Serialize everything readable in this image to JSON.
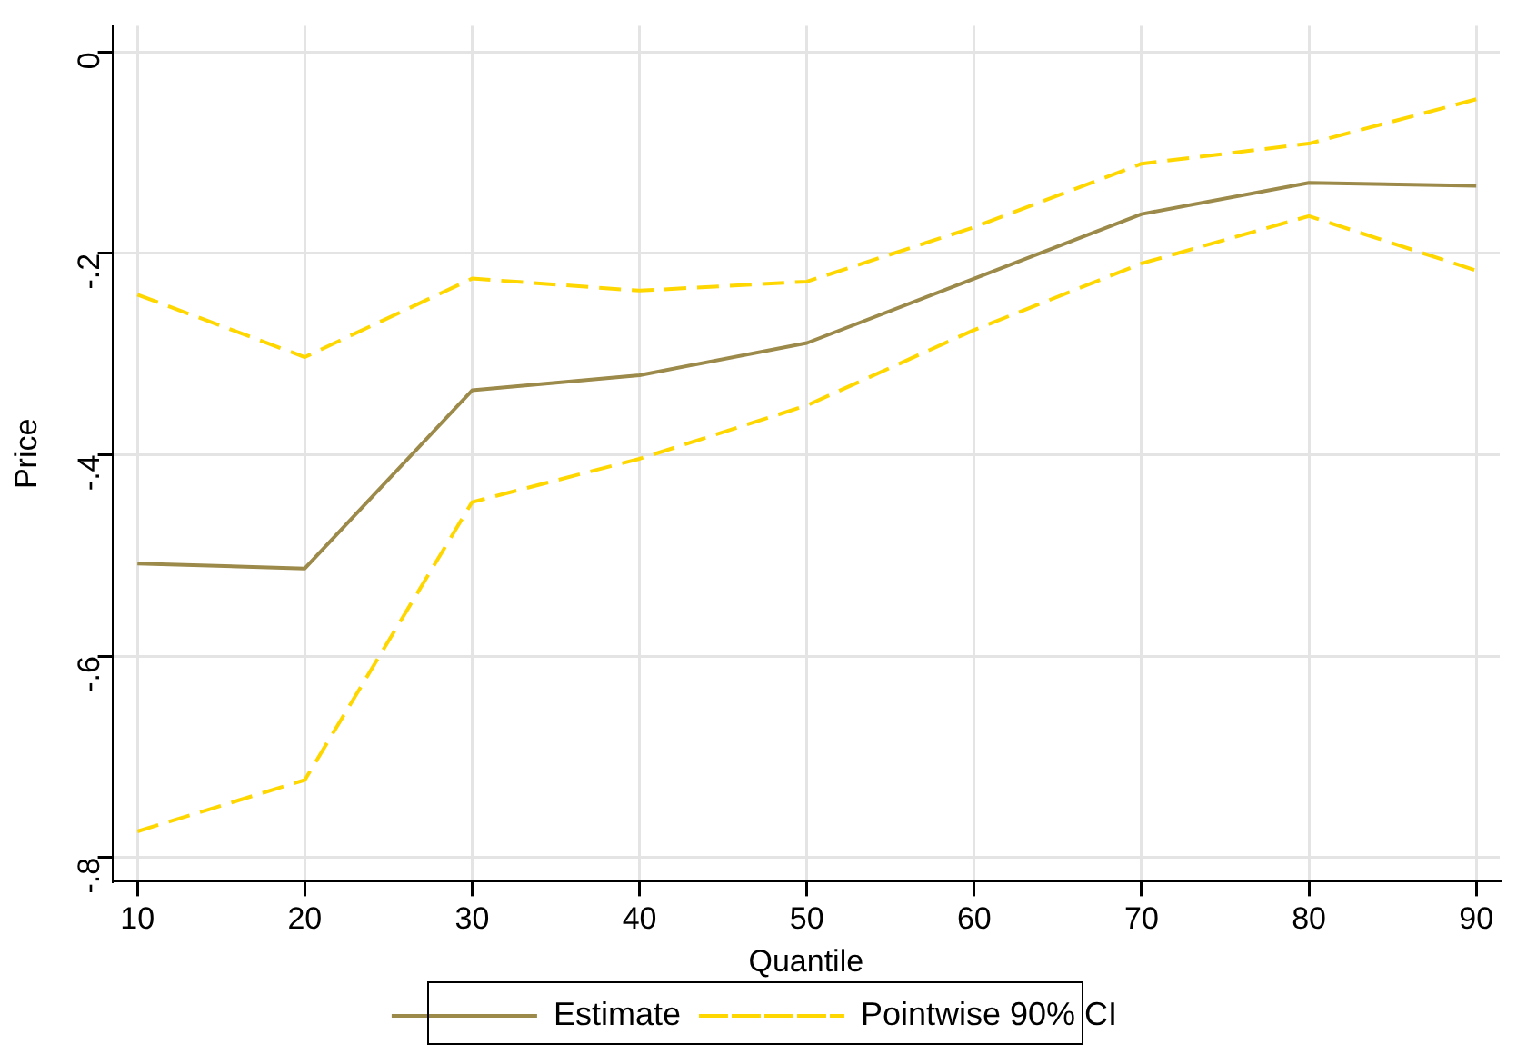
{
  "chart_data": {
    "type": "line",
    "xlabel": "Quantile",
    "ylabel": "Price",
    "x": [
      10,
      20,
      30,
      40,
      50,
      60,
      70,
      80,
      90
    ],
    "series": [
      {
        "name": "Estimate",
        "color": "#9c8a4a",
        "line_style": "solid",
        "values": [
          -0.508,
          -0.513,
          -0.336,
          -0.321,
          -0.289,
          -0.225,
          -0.161,
          -0.13,
          -0.133
        ]
      },
      {
        "name": "Pointwise 90% CI",
        "color": "#ffd700",
        "line_style": "dashed",
        "values": [
          -0.241,
          -0.303,
          -0.225,
          -0.237,
          -0.228,
          -0.174,
          -0.111,
          -0.091,
          -0.047
        ]
      },
      {
        "color": "#ffd700",
        "line_style": "dashed",
        "values": [
          -0.774,
          -0.723,
          -0.447,
          -0.404,
          -0.351,
          -0.276,
          -0.21,
          -0.163,
          -0.217
        ]
      }
    ],
    "xlim": [
      8.5,
      91.4
    ],
    "xticks": [
      10,
      20,
      30,
      40,
      50,
      60,
      70,
      80,
      90
    ],
    "ylim": [
      -0.824,
      0.026
    ],
    "yticks": [
      {
        "value": -0.8,
        "label": "-.8"
      },
      {
        "value": -0.6,
        "label": "-.6"
      },
      {
        "value": -0.4,
        "label": "-.4"
      },
      {
        "value": -0.2,
        "label": "-.2"
      },
      {
        "value": 0,
        "label": "0"
      }
    ],
    "grid": true,
    "legend": "bottom",
    "marker": "none"
  }
}
